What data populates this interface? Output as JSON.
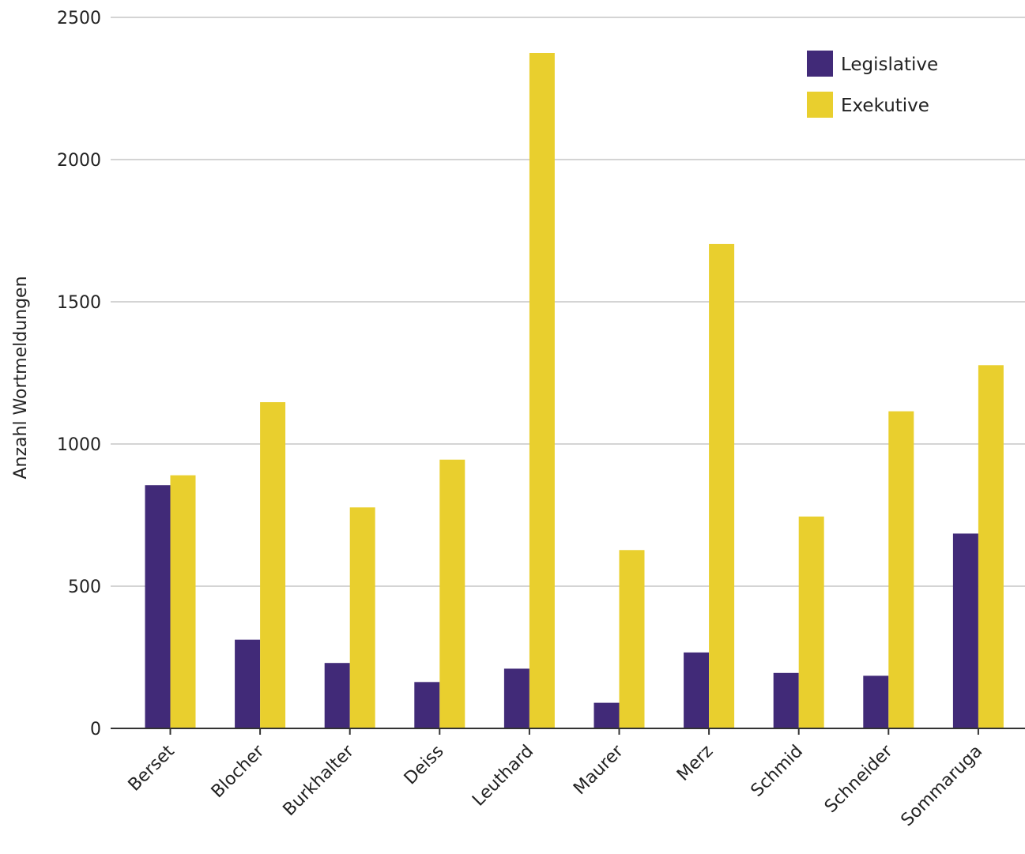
{
  "chart_data": {
    "type": "bar",
    "title": "",
    "xlabel": "",
    "ylabel": "Anzahl Wortmeldungen",
    "ylim": [
      0,
      2500
    ],
    "yticks": [
      0,
      500,
      1000,
      1500,
      2000,
      2500
    ],
    "grid": true,
    "legend_position": "top-right",
    "categories": [
      "Berset",
      "Blocher",
      "Burkhalter",
      "Deiss",
      "Leuthard",
      "Maurer",
      "Merz",
      "Schmid",
      "Schneider",
      "Sommaruga"
    ],
    "series": [
      {
        "name": "Legislative",
        "color": "#412a78",
        "values": [
          855,
          312,
          230,
          163,
          210,
          90,
          267,
          195,
          185,
          685
        ]
      },
      {
        "name": "Exekutive",
        "color": "#e9cf2e",
        "values": [
          890,
          1147,
          777,
          945,
          2375,
          627,
          1703,
          745,
          1115,
          1277
        ]
      }
    ]
  }
}
